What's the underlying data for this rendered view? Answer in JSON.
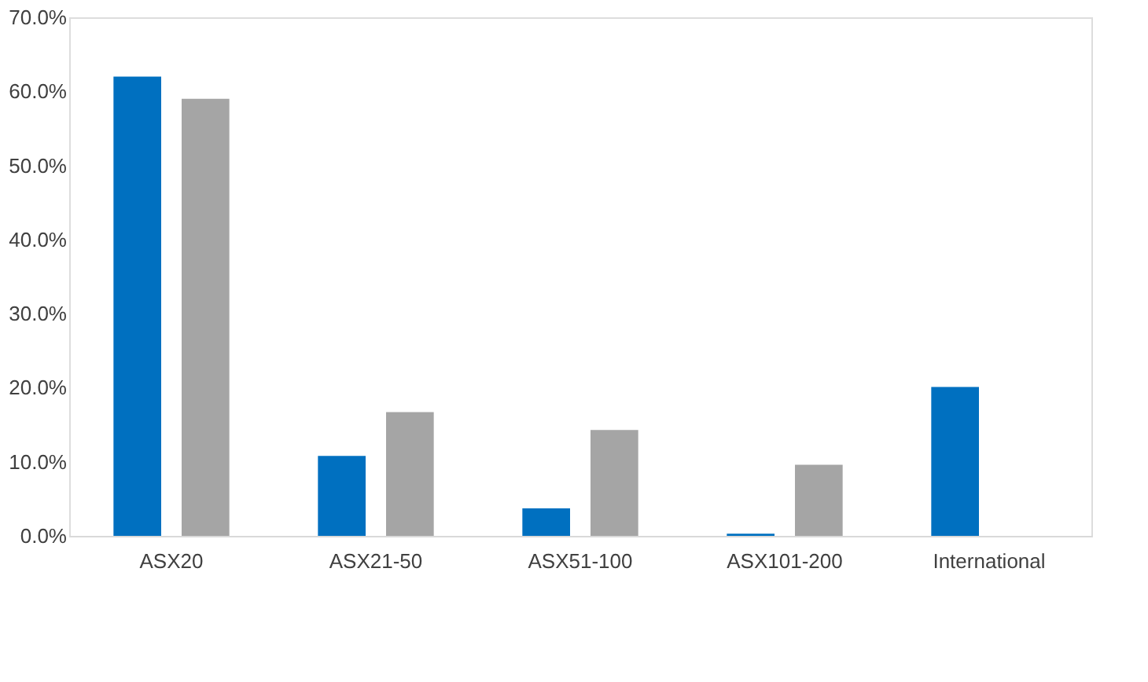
{
  "chart_data": {
    "type": "bar",
    "categories": [
      "ASX20",
      "ASX21-50",
      "ASX51-100",
      "ASX101-200",
      "International"
    ],
    "series": [
      {
        "color": "#0070c0",
        "values": [
          62.0,
          10.8,
          3.7,
          0.3,
          20.1
        ]
      },
      {
        "color": "#a5a5a5",
        "values": [
          59.0,
          16.7,
          14.3,
          9.6,
          null
        ]
      }
    ],
    "ylim": [
      0,
      70
    ],
    "yticks": [
      {
        "value": 0,
        "label": "0.0%"
      },
      {
        "value": 10,
        "label": "10.0%"
      },
      {
        "value": 20,
        "label": "20.0%"
      },
      {
        "value": 30,
        "label": "30.0%"
      },
      {
        "value": 40,
        "label": "40.0%"
      },
      {
        "value": 50,
        "label": "50.0%"
      },
      {
        "value": 60,
        "label": "60.0%"
      },
      {
        "value": 70,
        "label": "70.0%"
      }
    ],
    "grid": false,
    "legend": false
  }
}
